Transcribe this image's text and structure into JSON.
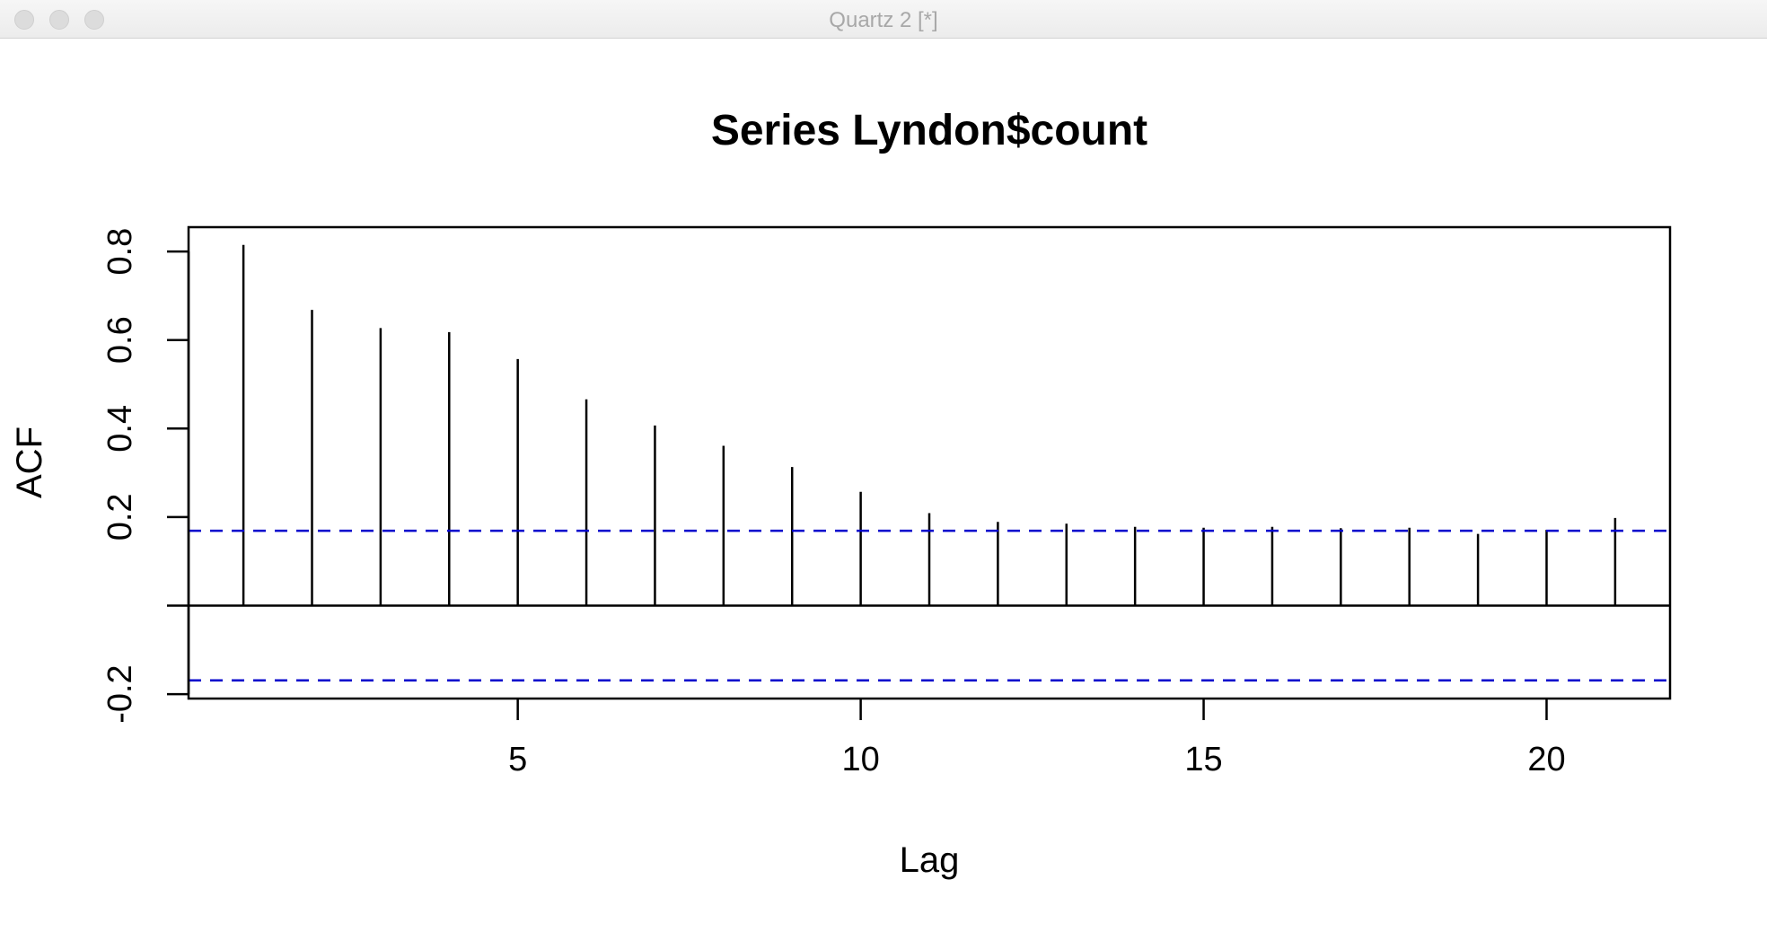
{
  "window": {
    "title": "Quartz 2 [*]"
  },
  "colors": {
    "bars": "#000000",
    "confidence_band": "#0000cc",
    "axes": "#000000"
  },
  "chart_data": {
    "type": "bar",
    "title": "Series Lyndon$count",
    "xlabel": "Lag",
    "ylabel": "ACF",
    "x": [
      1,
      2,
      3,
      4,
      5,
      6,
      7,
      8,
      9,
      10,
      11,
      12,
      13,
      14,
      15,
      16,
      17,
      18,
      19,
      20,
      21
    ],
    "values": [
      0.815,
      0.668,
      0.627,
      0.618,
      0.557,
      0.466,
      0.407,
      0.361,
      0.313,
      0.257,
      0.209,
      0.189,
      0.185,
      0.178,
      0.176,
      0.178,
      0.175,
      0.176,
      0.162,
      0.171,
      0.198
    ],
    "confidence_bound": 0.169,
    "xlim": [
      0.2,
      21.8
    ],
    "ylim": [
      -0.21,
      0.855
    ],
    "xticks": [
      5,
      10,
      15,
      20
    ],
    "xtick_labels": [
      "5",
      "10",
      "15",
      "20"
    ],
    "yticks": [
      -0.2,
      0.2,
      0.4,
      0.6,
      0.8
    ],
    "ytick_labels": [
      "-0.2",
      "0.2",
      "0.4",
      "0.6",
      "0.8"
    ],
    "grid": false
  }
}
